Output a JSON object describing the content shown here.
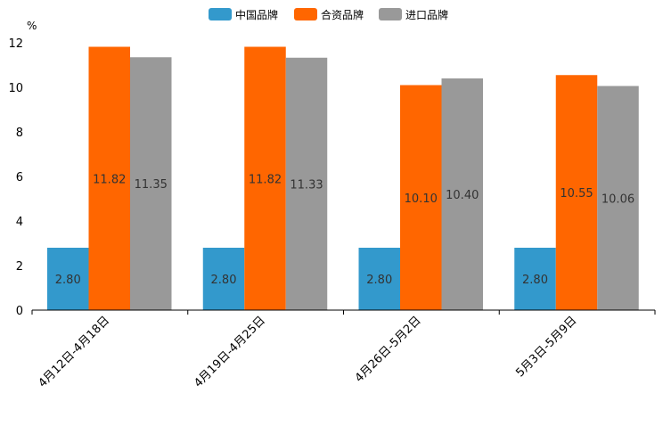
{
  "chart_data": {
    "type": "bar",
    "title": "",
    "xlabel": "",
    "ylabel": "%",
    "ylim": [
      0,
      12
    ],
    "yticks": [
      0,
      2,
      4,
      6,
      8,
      10,
      12
    ],
    "grid": false,
    "legend_position": "top-center",
    "categories": [
      "4月12日-4月18日",
      "4月19日-4月25日",
      "4月26日-5月2日",
      "5月3日-5月9日"
    ],
    "series": [
      {
        "name": "中国品牌",
        "color": "#3399cc",
        "values": [
          2.8,
          2.8,
          2.8,
          2.8
        ],
        "labels": [
          "2.80",
          "2.80",
          "2.80",
          "2.80"
        ]
      },
      {
        "name": "合资品牌",
        "color": "#ff6600",
        "values": [
          11.82,
          11.82,
          10.1,
          10.55
        ],
        "labels": [
          "11.82",
          "11.82",
          "10.10",
          "10.55"
        ]
      },
      {
        "name": "进口品牌",
        "color": "#999999",
        "values": [
          11.35,
          11.33,
          10.4,
          10.06
        ],
        "labels": [
          "11.35",
          "11.33",
          "10.40",
          "10.06"
        ]
      }
    ]
  }
}
